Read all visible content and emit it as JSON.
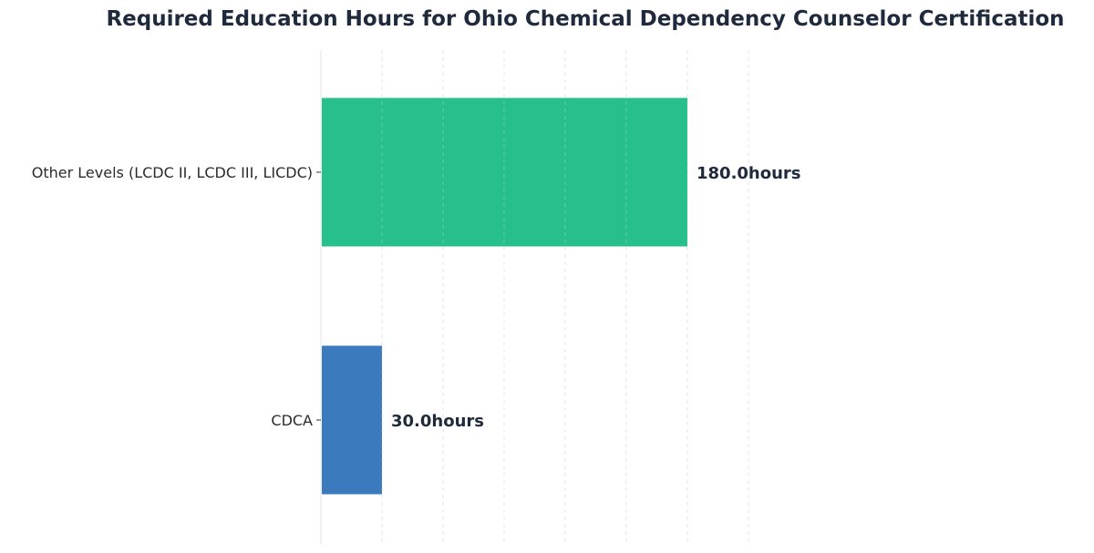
{
  "chart_data": {
    "type": "bar",
    "orientation": "horizontal",
    "title": "Required Education Hours for Ohio Chemical Dependency Counselor Certification",
    "categories": [
      "Other Levels (LCDC II, LCDC III, LICDC)",
      "CDCA"
    ],
    "values": [
      180.0,
      30.0
    ],
    "value_labels": [
      "180.0hours",
      "30.0hours"
    ],
    "colors": [
      "#27bf8b",
      "#3a7abd"
    ],
    "xlim": [
      0,
      300
    ],
    "grid": true
  }
}
